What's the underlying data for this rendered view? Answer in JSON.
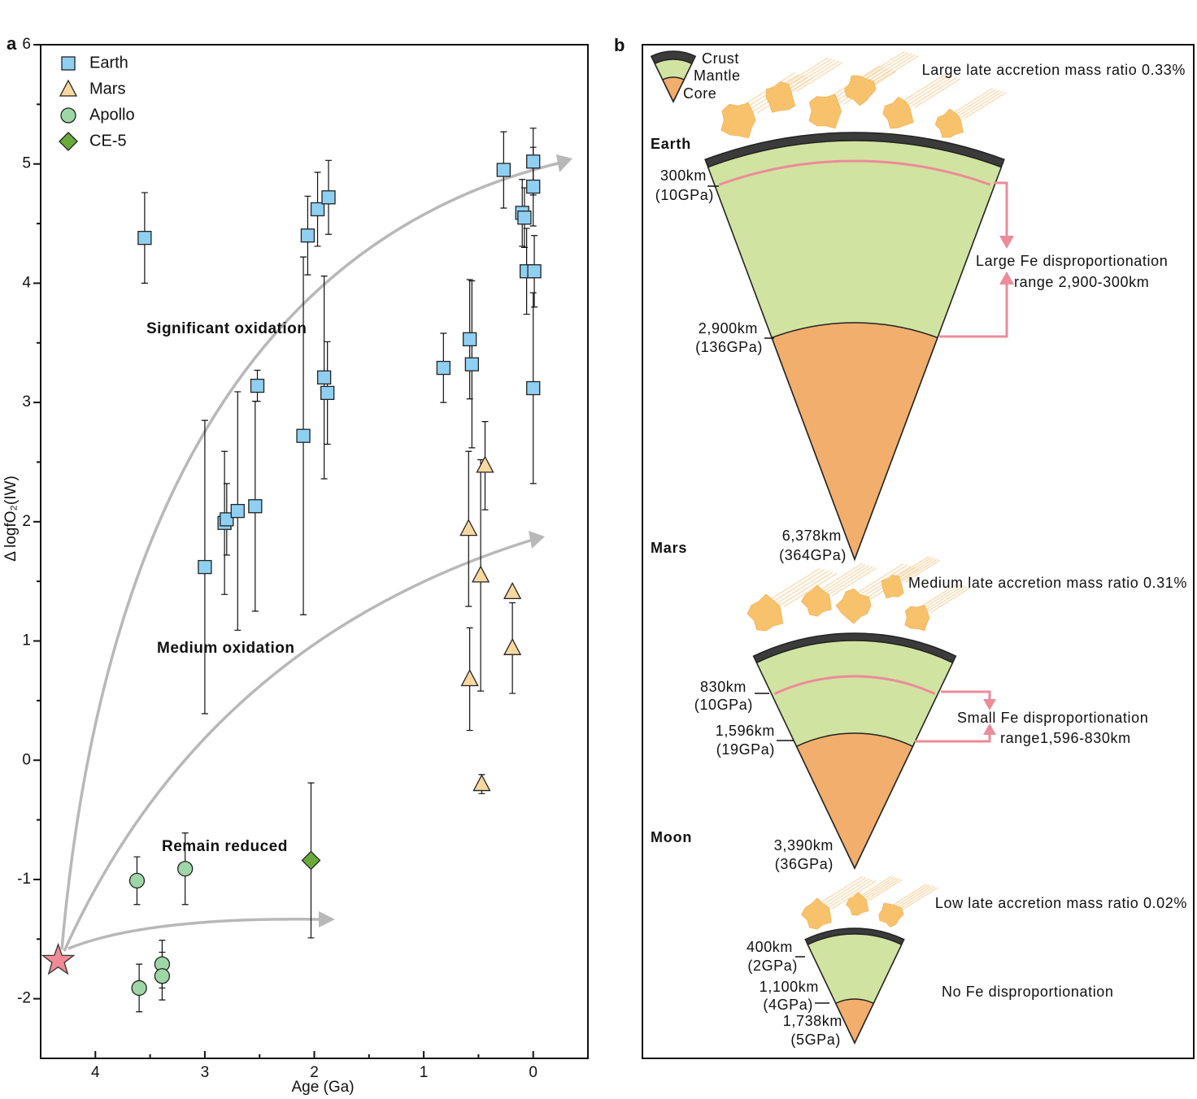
{
  "chart_data": {
    "type": "scatter",
    "label": "a",
    "x_label": "Age (Ga)",
    "y_label": "Δ logfO₂(IW)",
    "xlim": [
      4.5,
      -0.5
    ],
    "xticks": [
      4,
      3,
      2,
      1,
      0
    ],
    "ylim": [
      -2.5,
      6
    ],
    "yticks": [
      -2,
      -1,
      0,
      1,
      2,
      3,
      4,
      5,
      6
    ],
    "legend": "upper left",
    "series": [
      {
        "name": "Earth",
        "marker": "square",
        "color": "#8fd0f2",
        "x": [
          3.55,
          3.0,
          2.82,
          2.8,
          2.7,
          2.54,
          2.52,
          2.1,
          2.06,
          1.97,
          1.87,
          1.91,
          1.88,
          0.82,
          0.58,
          0.56,
          0.27,
          0.1,
          0.08,
          0.0,
          0.0,
          0.06,
          -0.01,
          0.0
        ],
        "values": [
          4.38,
          1.62,
          1.99,
          2.02,
          2.09,
          2.13,
          3.14,
          2.72,
          4.4,
          4.62,
          4.72,
          3.21,
          3.08,
          3.29,
          3.53,
          3.32,
          4.95,
          4.59,
          4.55,
          5.02,
          4.81,
          4.1,
          4.1,
          3.12
        ],
        "errors": [
          0.38,
          1.23,
          0.6,
          0.3,
          1.0,
          0.88,
          0.13,
          1.5,
          0.33,
          0.31,
          0.31,
          0.85,
          0.43,
          0.29,
          0.5,
          0.7,
          0.32,
          0.28,
          0.25,
          0.28,
          0.33,
          0.36,
          0.3,
          0.8
        ]
      },
      {
        "name": "Mars",
        "marker": "triangle",
        "color": "#f9d8a0",
        "x": [
          0.59,
          0.44,
          0.48,
          0.58,
          0.19,
          0.19,
          0.47
        ],
        "values": [
          1.94,
          2.47,
          1.55,
          0.68,
          1.41,
          0.94,
          -0.2
        ],
        "errors": [
          0.65,
          0.37,
          0.97,
          0.43,
          null,
          0.38,
          0.08
        ]
      },
      {
        "name": "Apollo",
        "marker": "circle",
        "color": "#9fd6a6",
        "x": [
          3.62,
          3.18,
          3.6,
          3.39,
          3.39
        ],
        "values": [
          -1.01,
          -0.91,
          -1.91,
          -1.71,
          -1.81
        ],
        "errors": [
          0.2,
          0.3,
          0.2,
          0.2,
          0.2
        ]
      },
      {
        "name": "CE-5",
        "marker": "diamond",
        "color": "#6aaa3a",
        "x": [
          2.03
        ],
        "values": [
          -0.84
        ],
        "errors": [
          0.65
        ]
      }
    ],
    "start_point": {
      "x": 4.34,
      "y": -1.68,
      "color": "#f08a96"
    },
    "annotations": [
      "Significant oxidation",
      "Medium oxidation",
      "Remain reduced"
    ]
  },
  "diagram": {
    "label": "b",
    "legend": [
      "Crust",
      "Mantle",
      "Core"
    ],
    "planets": [
      {
        "name": "Earth",
        "accretion": "Large late accretion mass ratio 0.33%",
        "layers": [
          {
            "depth": "300km",
            "pressure": "(10GPa)"
          },
          {
            "depth": "2,900km",
            "pressure": "(136GPa)"
          },
          {
            "depth": "6,378km",
            "pressure": "(364GPa)"
          }
        ],
        "disproportionation": [
          "Large Fe disproportionation",
          "range 2,900-300km"
        ]
      },
      {
        "name": "Mars",
        "accretion": "Medium late accretion mass ratio 0.31%",
        "layers": [
          {
            "depth": "830km",
            "pressure": "(10GPa)"
          },
          {
            "depth": "1,596km",
            "pressure": "(19GPa)"
          },
          {
            "depth": "3,390km",
            "pressure": "(36GPa)"
          }
        ],
        "disproportionation": [
          "Small Fe disproportionation",
          "range1,596-830km"
        ]
      },
      {
        "name": "Moon",
        "accretion": "Low late accretion mass ratio 0.02%",
        "layers": [
          {
            "depth": "400km",
            "pressure": "(2GPa)"
          },
          {
            "depth": "1,100km",
            "pressure": "(4GPa)"
          },
          {
            "depth": "1,738km",
            "pressure": "(5GPa)"
          }
        ],
        "disproportionation": [
          "No Fe disproportionation"
        ]
      }
    ]
  }
}
